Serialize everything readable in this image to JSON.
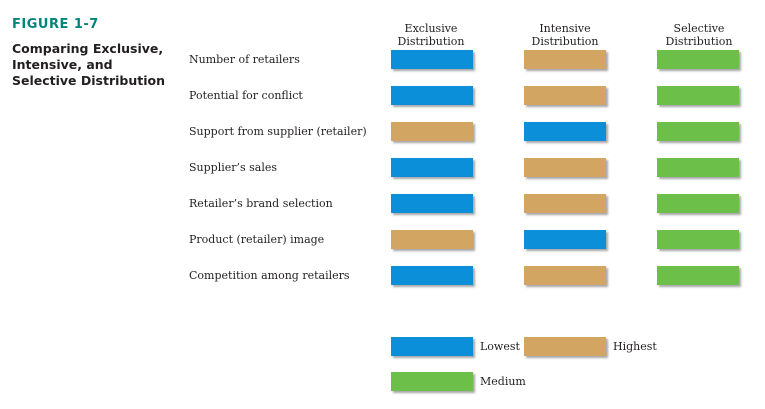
{
  "figure": {
    "label": "FIGURE 1-7",
    "title": "Comparing Exclusive, Intensive, and Selective Distribution"
  },
  "columns": [
    {
      "line1": "Exclusive",
      "line2": "Distribution"
    },
    {
      "line1": "Intensive",
      "line2": "Distribution"
    },
    {
      "line1": "Selective",
      "line2": "Distribution"
    }
  ],
  "rows": [
    {
      "label": "Number of retailers",
      "levels": [
        "lowest",
        "highest",
        "medium"
      ]
    },
    {
      "label": "Potential for conflict",
      "levels": [
        "lowest",
        "highest",
        "medium"
      ]
    },
    {
      "label": "Support from supplier (retailer)",
      "levels": [
        "highest",
        "lowest",
        "medium"
      ]
    },
    {
      "label": "Supplier’s sales",
      "levels": [
        "lowest",
        "highest",
        "medium"
      ]
    },
    {
      "label": "Retailer’s brand selection",
      "levels": [
        "lowest",
        "highest",
        "medium"
      ]
    },
    {
      "label": "Product (retailer) image",
      "levels": [
        "highest",
        "lowest",
        "medium"
      ]
    },
    {
      "label": "Competition among retailers",
      "levels": [
        "lowest",
        "highest",
        "medium"
      ]
    }
  ],
  "legend": {
    "lowest": "Lowest",
    "highest": "Highest",
    "medium": "Medium"
  },
  "colors": {
    "lowest": "#0a8fd8",
    "highest": "#d3a563",
    "medium": "#6cc04a"
  }
}
